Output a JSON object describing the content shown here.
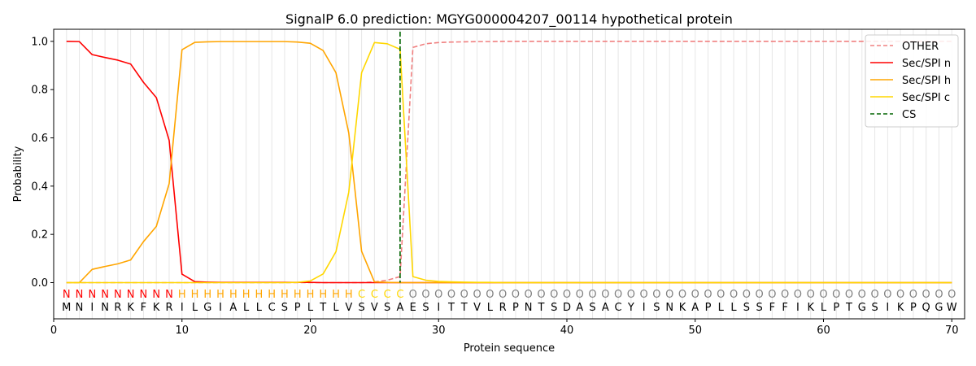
{
  "chart_data": {
    "type": "line",
    "title": "SignalP 6.0 prediction: MGYG000004207_00114 hypothetical protein",
    "xlabel": "Protein sequence",
    "ylabel": "Probability",
    "xlim": [
      0,
      71
    ],
    "ylim": [
      -0.15,
      1.05
    ],
    "x_ticks": [
      0,
      10,
      20,
      30,
      40,
      50,
      60,
      70
    ],
    "x_tick_labels": [
      "0",
      "10",
      "20",
      "30",
      "40",
      "50",
      "60",
      "70"
    ],
    "y_ticks": [
      0.0,
      0.2,
      0.4,
      0.6,
      0.8,
      1.0
    ],
    "y_tick_labels": [
      "0.0",
      "0.2",
      "0.4",
      "0.6",
      "0.8",
      "1.0"
    ],
    "grid": "vertical lines at each residue",
    "legend_position": "top-right",
    "sequence": [
      "M",
      "N",
      "I",
      "N",
      "R",
      "K",
      "F",
      "K",
      "R",
      "I",
      "L",
      "G",
      "I",
      "A",
      "L",
      "L",
      "C",
      "S",
      "P",
      "L",
      "T",
      "L",
      "V",
      "S",
      "V",
      "S",
      "A",
      "E",
      "S",
      "I",
      "T",
      "T",
      "V",
      "L",
      "R",
      "P",
      "N",
      "T",
      "S",
      "D",
      "A",
      "S",
      "A",
      "C",
      "Y",
      "I",
      "S",
      "N",
      "K",
      "A",
      "P",
      "L",
      "L",
      "S",
      "S",
      "F",
      "F",
      "I",
      "K",
      "L",
      "P",
      "T",
      "G",
      "S",
      "I",
      "K",
      "P",
      "Q",
      "G",
      "W"
    ],
    "predicted_labels": [
      "N",
      "N",
      "N",
      "N",
      "N",
      "N",
      "N",
      "N",
      "N",
      "H",
      "H",
      "H",
      "H",
      "H",
      "H",
      "H",
      "H",
      "H",
      "H",
      "H",
      "H",
      "H",
      "H",
      "C",
      "C",
      "C",
      "C",
      "O",
      "O",
      "O",
      "O",
      "O",
      "O",
      "O",
      "O",
      "O",
      "O",
      "O",
      "O",
      "O",
      "O",
      "O",
      "O",
      "O",
      "O",
      "O",
      "O",
      "O",
      "O",
      "O",
      "O",
      "O",
      "O",
      "O",
      "O",
      "O",
      "O",
      "O",
      "O",
      "O",
      "O",
      "O",
      "O",
      "O",
      "O",
      "O",
      "O",
      "O",
      "O",
      "O"
    ],
    "label_colors": {
      "N": "#ff0000",
      "H": "#ffa500",
      "C": "#ffd700",
      "O": "#808080"
    },
    "x": [
      1,
      2,
      3,
      4,
      5,
      6,
      7,
      8,
      9,
      10,
      11,
      12,
      13,
      14,
      15,
      16,
      17,
      18,
      19,
      20,
      21,
      22,
      23,
      24,
      25,
      26,
      27,
      28,
      29,
      30,
      31,
      32,
      33,
      34,
      35,
      36,
      37,
      38,
      39,
      40,
      41,
      42,
      43,
      44,
      45,
      46,
      47,
      48,
      49,
      50,
      51,
      52,
      53,
      54,
      55,
      56,
      57,
      58,
      59,
      60,
      61,
      62,
      63,
      64,
      65,
      66,
      67,
      68,
      69,
      70
    ],
    "series": [
      {
        "name": "OTHER",
        "color": "#f08080",
        "dash": "dashed",
        "values": [
          0,
          0,
          0,
          0,
          0,
          0,
          0,
          0,
          0,
          0,
          0,
          0,
          0,
          0,
          0,
          0,
          0,
          0,
          0,
          0,
          0,
          0,
          0,
          0,
          0.003,
          0.01,
          0.025,
          0.975,
          0.99,
          0.995,
          0.997,
          0.998,
          0.999,
          0.999,
          1,
          1,
          1,
          1,
          1,
          1,
          1,
          1,
          1,
          1,
          1,
          1,
          1,
          1,
          1,
          1,
          1,
          1,
          1,
          1,
          1,
          1,
          1,
          1,
          1,
          1,
          1,
          1,
          1,
          1,
          1,
          1,
          1,
          1,
          1,
          1
        ]
      },
      {
        "name": "Sec/SPI n",
        "color": "#ff0000",
        "dash": "solid",
        "values": [
          1.0,
          0.999,
          0.945,
          0.933,
          0.922,
          0.906,
          0.83,
          0.767,
          0.59,
          0.035,
          0.004,
          0.002,
          0.001,
          0.001,
          0.001,
          0.001,
          0.001,
          0.001,
          0.001,
          0.001,
          0,
          0,
          0,
          0,
          0,
          0,
          0,
          0,
          0,
          0,
          0,
          0,
          0,
          0,
          0,
          0,
          0,
          0,
          0,
          0,
          0,
          0,
          0,
          0,
          0,
          0,
          0,
          0,
          0,
          0,
          0,
          0,
          0,
          0,
          0,
          0,
          0,
          0,
          0,
          0,
          0,
          0,
          0,
          0,
          0,
          0,
          0,
          0,
          0,
          0
        ]
      },
      {
        "name": "Sec/SPI h",
        "color": "#ffa500",
        "dash": "solid",
        "values": [
          0,
          0,
          0.055,
          0.067,
          0.078,
          0.094,
          0.17,
          0.233,
          0.41,
          0.965,
          0.996,
          0.998,
          0.999,
          0.999,
          0.999,
          0.999,
          0.999,
          0.999,
          0.997,
          0.992,
          0.962,
          0.87,
          0.62,
          0.13,
          0.003,
          0.001,
          0,
          0,
          0,
          0,
          0,
          0,
          0,
          0,
          0,
          0,
          0,
          0,
          0,
          0,
          0,
          0,
          0,
          0,
          0,
          0,
          0,
          0,
          0,
          0,
          0,
          0,
          0,
          0,
          0,
          0,
          0,
          0,
          0,
          0,
          0,
          0,
          0,
          0,
          0,
          0,
          0,
          0,
          0,
          0
        ]
      },
      {
        "name": "Sec/SPI c",
        "color": "#ffd700",
        "dash": "solid",
        "values": [
          0,
          0,
          0,
          0,
          0,
          0,
          0,
          0,
          0,
          0,
          0,
          0,
          0,
          0,
          0,
          0,
          0,
          0,
          0.001,
          0.007,
          0.036,
          0.128,
          0.375,
          0.87,
          0.995,
          0.99,
          0.967,
          0.025,
          0.01,
          0.005,
          0.003,
          0.002,
          0.001,
          0.001,
          0,
          0,
          0,
          0,
          0,
          0,
          0,
          0,
          0,
          0,
          0,
          0,
          0,
          0,
          0,
          0,
          0,
          0,
          0,
          0,
          0,
          0,
          0,
          0,
          0,
          0,
          0,
          0,
          0,
          0,
          0,
          0,
          0,
          0,
          0,
          0
        ]
      }
    ],
    "cs_line": {
      "name": "CS",
      "x": 27,
      "color": "#006400",
      "dash": "dashed"
    }
  }
}
